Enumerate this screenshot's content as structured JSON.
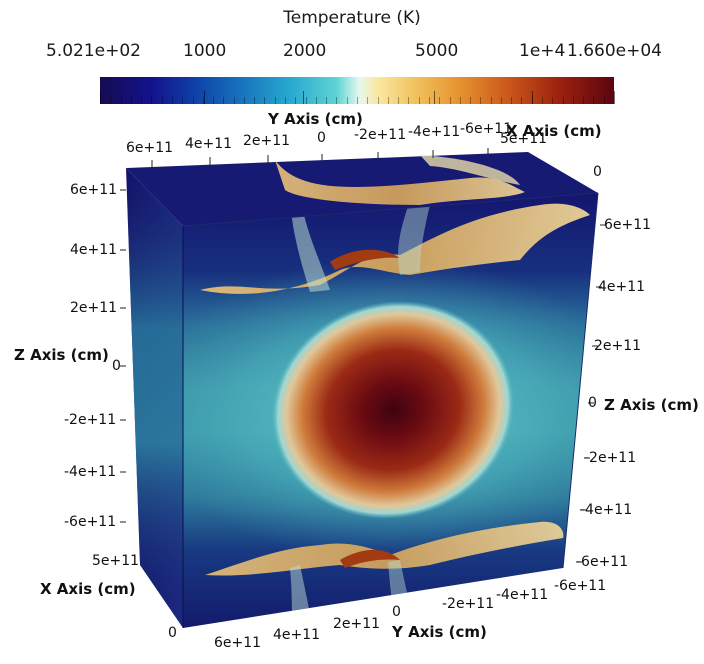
{
  "colorbar": {
    "title": "Temperature (K)",
    "tick_labels": [
      "5.021e+02",
      "1000",
      "2000",
      "5000",
      "1e+4",
      "1.660e+04"
    ]
  },
  "axes": {
    "y_axis_title": "Y Axis (cm)",
    "x_axis_title": "X Axis (cm)",
    "z_axis_title": "Z Axis (cm)",
    "top_y_ticks": [
      "6e+11",
      "4e+11",
      "2e+11",
      "0",
      "-2e+11",
      "-4e+11",
      "-6e+11"
    ],
    "top_x_ticks": [
      "5e+11",
      "0"
    ],
    "left_z_ticks": [
      "6e+11",
      "4e+11",
      "2e+11",
      "0",
      "-2e+11",
      "-4e+11",
      "-6e+11"
    ],
    "right_z_ticks": [
      "6e+11",
      "4e+11",
      "2e+11",
      "0",
      "-2e+11",
      "-4e+11",
      "-6e+11"
    ],
    "left_x_ticks": [
      "5e+11",
      "0"
    ],
    "bottom_y_ticks": [
      "6e+11",
      "4e+11",
      "2e+11",
      "0",
      "-2e+11",
      "-4e+11",
      "-6e+11"
    ]
  }
}
